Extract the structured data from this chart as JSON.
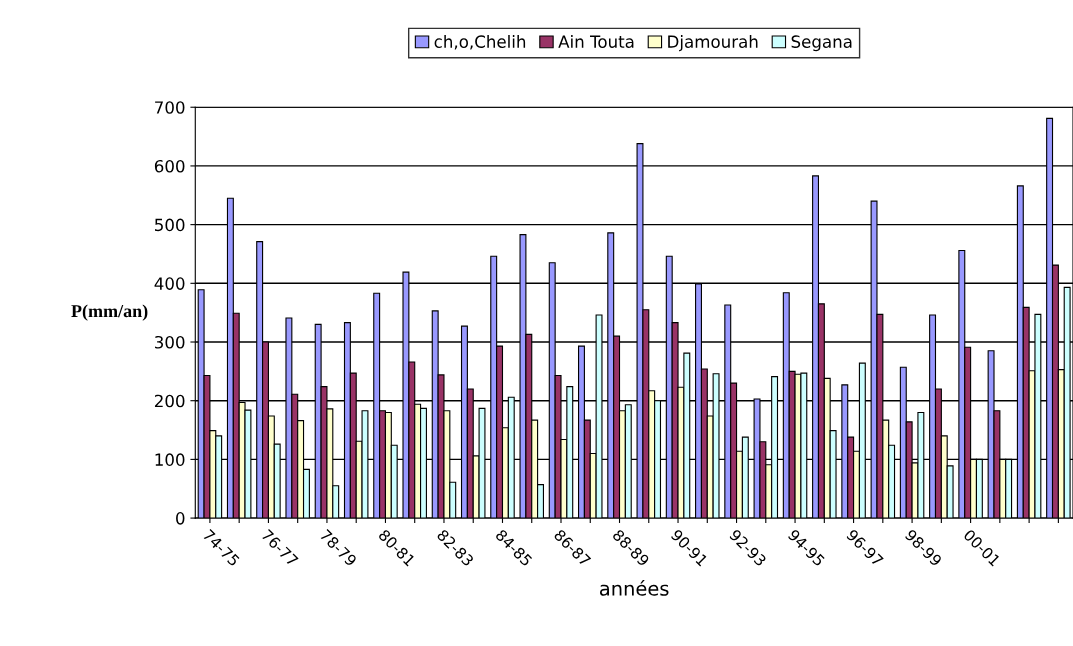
{
  "chart_data": {
    "type": "bar",
    "xlabel": "années",
    "ylabel": "P(mm/an)",
    "categories": [
      "74-75",
      null,
      "76-77",
      null,
      "78-79",
      null,
      "80-81",
      null,
      "82-83",
      null,
      "84-85",
      null,
      "86-87",
      null,
      "88-89",
      null,
      "90-91",
      null,
      "92-93",
      null,
      "94-95",
      null,
      "96-97",
      null,
      "98-99",
      null,
      "00-01",
      null,
      null,
      null
    ],
    "series": [
      {
        "name": "ch,o,Chelih",
        "color": "#9999ff",
        "values": [
          389,
          545,
          471,
          341,
          330,
          333,
          383,
          419,
          353,
          327,
          446,
          483,
          435,
          293,
          486,
          638,
          446,
          399,
          363,
          203,
          384,
          583,
          227,
          540,
          257,
          346,
          456,
          285,
          566,
          681
        ]
      },
      {
        "name": "Ain Touta",
        "color": "#993366",
        "values": [
          243,
          349,
          300,
          211,
          224,
          247,
          183,
          266,
          244,
          220,
          293,
          313,
          243,
          167,
          310,
          355,
          333,
          254,
          230,
          130,
          250,
          365,
          138,
          347,
          164,
          220,
          291,
          183,
          359,
          431
        ]
      },
      {
        "name": "Djamourah",
        "color": "#ffffcc",
        "values": [
          149,
          197,
          174,
          166,
          186,
          131,
          180,
          194,
          183,
          106,
          154,
          167,
          134,
          110,
          183,
          217,
          223,
          174,
          114,
          91,
          245,
          238,
          114,
          167,
          94,
          140,
          100,
          100,
          251,
          253
        ]
      },
      {
        "name": "Segana",
        "color": "#ccffff",
        "values": [
          140,
          184,
          126,
          83,
          55,
          183,
          124,
          187,
          61,
          187,
          206,
          57,
          224,
          346,
          193,
          200,
          281,
          246,
          138,
          241,
          247,
          149,
          264,
          124,
          180,
          89,
          100,
          100,
          347,
          393
        ]
      }
    ],
    "ylim": [
      0,
      700
    ],
    "yticks": [
      0,
      100,
      200,
      300,
      400,
      500,
      600,
      700
    ],
    "grid": "y",
    "legend": "top"
  }
}
